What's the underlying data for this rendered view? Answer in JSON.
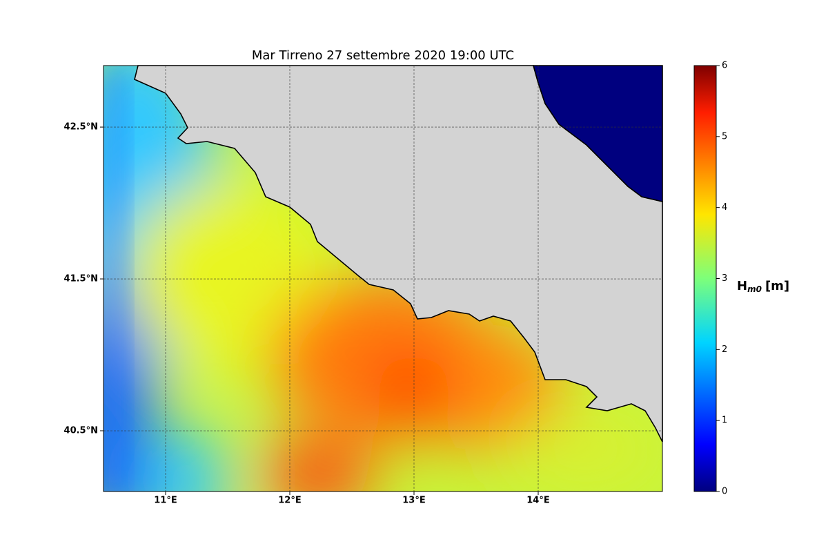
{
  "map": {
    "title": "Mar Tirreno  27 settembre 2020  19:00 UTC",
    "xlim": [
      10.5,
      15
    ],
    "ylim": [
      40.1,
      42.905
    ],
    "xticks": [
      {
        "value": 11,
        "label": "11°E"
      },
      {
        "value": 12,
        "label": "12°E"
      },
      {
        "value": 13,
        "label": "13°E"
      },
      {
        "value": 14,
        "label": "14°E"
      }
    ],
    "yticks": [
      {
        "value": 40.5,
        "label": "40.5°N"
      },
      {
        "value": 41.5,
        "label": "41.5°N"
      },
      {
        "value": 42.5,
        "label": "42.5°N"
      }
    ],
    "grid": true
  },
  "colorbar": {
    "label": {
      "main": "H",
      "subscript": "m0",
      "unit": "[m]"
    },
    "lim": [
      0,
      6
    ],
    "ticks": [
      0,
      1,
      2,
      3,
      4,
      5,
      6
    ]
  }
}
